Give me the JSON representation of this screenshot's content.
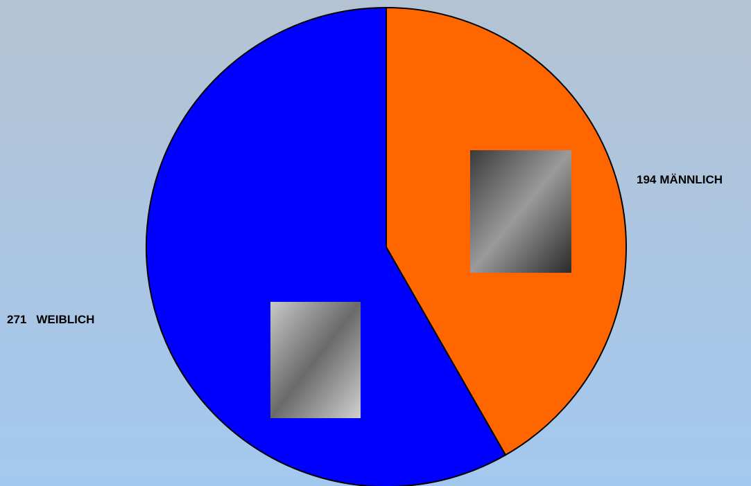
{
  "chart_data": {
    "type": "pie",
    "categories": [
      "MÄNNLICH",
      "WEIBLICH"
    ],
    "values": [
      194,
      271
    ],
    "colors": [
      "#ff6600",
      "#0000ff"
    ]
  }
}
